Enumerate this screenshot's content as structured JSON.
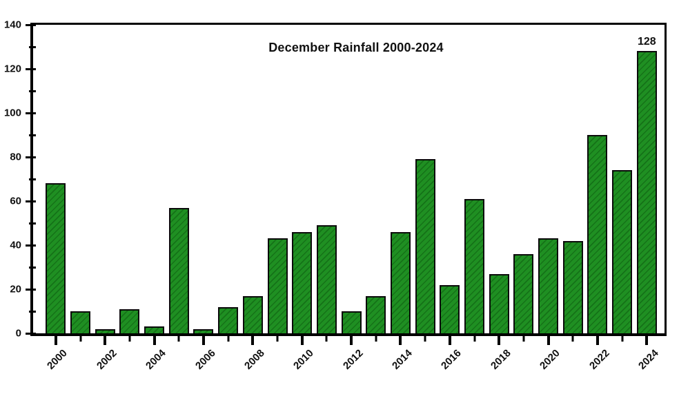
{
  "chart_data": {
    "type": "bar",
    "title": "December Rainfall 2000-2024",
    "categories": [
      "2000",
      "2001",
      "2002",
      "2003",
      "2004",
      "2005",
      "2006",
      "2007",
      "2008",
      "2009",
      "2010",
      "2011",
      "2012",
      "2013",
      "2014",
      "2015",
      "2016",
      "2017",
      "2018",
      "2019",
      "2020",
      "2021",
      "2022",
      "2023",
      "2024"
    ],
    "values": [
      68,
      10,
      2,
      11,
      3,
      57,
      2,
      12,
      17,
      43,
      46,
      49,
      10,
      17,
      46,
      79,
      22,
      61,
      27,
      36,
      43,
      42,
      90,
      74,
      128
    ],
    "xlabel": "",
    "ylabel": "",
    "ylim": [
      0,
      140
    ],
    "y_major_ticks": [
      0,
      20,
      40,
      60,
      80,
      100,
      120,
      140
    ],
    "y_minor_step": 10,
    "x_labeled_ticks": [
      "2000",
      "2002",
      "2004",
      "2006",
      "2008",
      "2010",
      "2012",
      "2014",
      "2016",
      "2018",
      "2020",
      "2022",
      "2024"
    ],
    "grid": false,
    "legend": "none",
    "bar_color": "#1f8f22",
    "bar_hatch_color": "#157218",
    "bar_edge_color": "#0b0b0b",
    "frame_color": "#000000",
    "background_color": "#ffffff",
    "data_label": {
      "category": "2024",
      "text": "128"
    }
  }
}
